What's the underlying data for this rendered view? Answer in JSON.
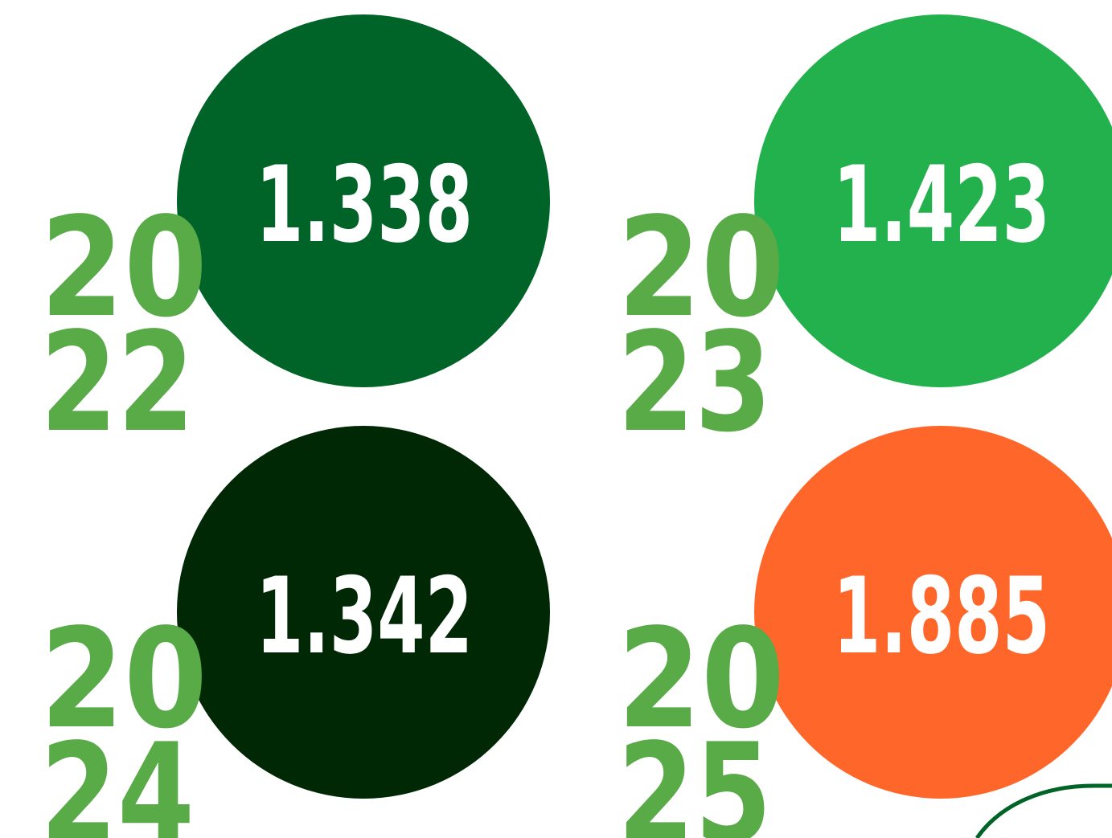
{
  "items": [
    {
      "year_top": "20",
      "year_bottom": "22",
      "value": "1.338",
      "color": "#006428"
    },
    {
      "year_top": "20",
      "year_bottom": "23",
      "value": "1.423",
      "color": "#22b14c"
    },
    {
      "year_top": "20",
      "year_bottom": "24",
      "value": "1.342",
      "color": "#012805"
    },
    {
      "year_top": "20",
      "year_bottom": "25",
      "value": "1.885",
      "color": "#ff6629"
    }
  ]
}
